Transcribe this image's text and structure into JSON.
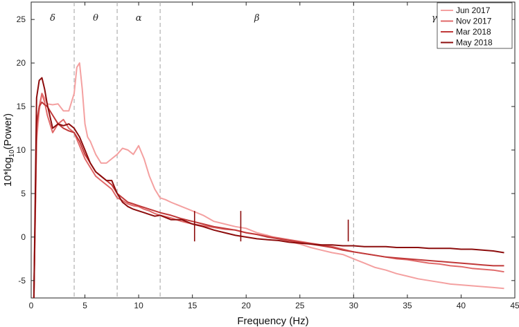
{
  "chart_data": {
    "type": "line",
    "xlabel": "Frequency (Hz)",
    "ylabel_main": "10*log",
    "ylabel_sub": "10",
    "ylabel_tail": "(Power)",
    "xlim": [
      0,
      45
    ],
    "ylim": [
      -7,
      27
    ],
    "xticks": [
      0,
      5,
      10,
      15,
      20,
      25,
      30,
      35,
      40,
      45
    ],
    "yticks": [
      -5,
      0,
      5,
      10,
      15,
      20,
      25
    ],
    "grid": false,
    "legend_position": "top-right",
    "bands": [
      {
        "label": "δ",
        "x": 2
      },
      {
        "label": "θ",
        "x": 6
      },
      {
        "label": "α",
        "x": 10
      },
      {
        "label": "β",
        "x": 21
      },
      {
        "label": "γ",
        "x": 37.5
      }
    ],
    "band_boundaries": [
      4,
      8,
      12,
      30
    ],
    "series": [
      {
        "name": "Jun 2017",
        "color": "#f4a0a0",
        "x": [
          0.25,
          0.5,
          0.75,
          1,
          1.25,
          1.5,
          2,
          2.5,
          3,
          3.5,
          4,
          4.25,
          4.5,
          4.75,
          5,
          5.25,
          5.5,
          6,
          6.5,
          7,
          7.5,
          8,
          8.5,
          9,
          9.5,
          10,
          10.5,
          11,
          11.5,
          12,
          12.5,
          13,
          14,
          15,
          16,
          17,
          18,
          19,
          20,
          21,
          22,
          23,
          24,
          25,
          26,
          27,
          28,
          29,
          30,
          31,
          32,
          33,
          34,
          35,
          36,
          37,
          38,
          39,
          40,
          41,
          42,
          43,
          44
        ],
        "y": [
          -7,
          11,
          14.5,
          16.5,
          16,
          15.3,
          15.2,
          15.3,
          14.5,
          14.5,
          16.5,
          19.5,
          20,
          17,
          13,
          11.5,
          11,
          9.5,
          8.5,
          8.5,
          9,
          9.5,
          10.2,
          10,
          9.5,
          10.5,
          9,
          7,
          5.5,
          4.5,
          4.3,
          4,
          3.5,
          3,
          2.5,
          1.8,
          1.5,
          1.2,
          1,
          0.5,
          0.2,
          -0.2,
          -0.5,
          -0.8,
          -1.2,
          -1.5,
          -1.8,
          -2,
          -2.5,
          -3,
          -3.5,
          -3.8,
          -4.2,
          -4.5,
          -4.8,
          -5,
          -5.2,
          -5.4,
          -5.5,
          -5.6,
          -5.7,
          -5.8,
          -5.9
        ]
      },
      {
        "name": "Nov 2017",
        "color": "#e06868",
        "x": [
          0.25,
          0.5,
          0.75,
          1,
          1.25,
          1.5,
          2,
          2.5,
          3,
          3.5,
          4,
          4.5,
          5,
          5.5,
          6,
          6.5,
          7,
          7.5,
          8,
          8.5,
          9,
          9.5,
          10,
          10.5,
          11,
          11.5,
          12,
          13,
          14,
          15,
          16,
          17,
          18,
          19,
          20,
          21,
          22,
          23,
          24,
          25,
          26,
          27,
          28,
          29,
          30,
          31,
          32,
          33,
          34,
          35,
          36,
          37,
          38,
          39,
          40,
          41,
          42,
          43,
          44
        ],
        "y": [
          -7,
          12,
          15,
          16.5,
          15.5,
          14,
          12,
          13,
          13.5,
          12.5,
          12,
          10.5,
          9,
          8,
          7,
          6.5,
          6,
          5.5,
          4.5,
          4.2,
          3.8,
          3.6,
          3.5,
          3.2,
          3,
          2.7,
          2.5,
          2.2,
          1.8,
          1.5,
          1.3,
          1.1,
          0.9,
          0.8,
          0.5,
          0.3,
          0.1,
          -0.1,
          -0.3,
          -0.5,
          -0.7,
          -0.9,
          -1.1,
          -1.4,
          -1.7,
          -1.9,
          -2.1,
          -2.3,
          -2.5,
          -2.6,
          -2.8,
          -3,
          -3.1,
          -3.3,
          -3.4,
          -3.6,
          -3.7,
          -3.8,
          -4
        ]
      },
      {
        "name": "Mar 2018",
        "color": "#c03838",
        "x": [
          0.25,
          0.5,
          0.75,
          1,
          1.25,
          1.5,
          2,
          2.5,
          3,
          3.5,
          4,
          4.5,
          5,
          5.5,
          6,
          6.5,
          7,
          7.5,
          8,
          8.5,
          9,
          9.5,
          10,
          10.5,
          11,
          11.5,
          12,
          13,
          14,
          15,
          16,
          17,
          18,
          19,
          20,
          21,
          22,
          23,
          24,
          25,
          26,
          27,
          28,
          29,
          30,
          31,
          32,
          33,
          34,
          35,
          36,
          37,
          38,
          39,
          40,
          41,
          42,
          43,
          44
        ],
        "y": [
          -7,
          13,
          15,
          15.5,
          15.2,
          15,
          14,
          13,
          12.5,
          12.2,
          12,
          11,
          9.5,
          8.5,
          7.5,
          7,
          6.5,
          6,
          5,
          4.5,
          4,
          3.8,
          3.6,
          3.4,
          3.2,
          3,
          2.8,
          2.5,
          2.1,
          1.8,
          1.5,
          1.2,
          1,
          0.8,
          0.5,
          0.3,
          0,
          -0.2,
          -0.4,
          -0.6,
          -0.8,
          -1,
          -1.2,
          -1.5,
          -1.7,
          -1.9,
          -2.1,
          -2.3,
          -2.4,
          -2.5,
          -2.6,
          -2.7,
          -2.8,
          -2.9,
          -3,
          -3.1,
          -3.2,
          -3.3,
          -3.3
        ]
      },
      {
        "name": "May 2018",
        "color": "#8c0c0c",
        "x": [
          0.25,
          0.5,
          0.75,
          1,
          1.25,
          1.5,
          2,
          2.5,
          3,
          3.5,
          4,
          4.5,
          5,
          5.5,
          6,
          6.5,
          7,
          7.5,
          8,
          8.5,
          9,
          9.5,
          10,
          10.5,
          11,
          11.5,
          12,
          13,
          14,
          15,
          16,
          17,
          18,
          19,
          20,
          21,
          22,
          23,
          24,
          25,
          26,
          27,
          28,
          29,
          30,
          31,
          32,
          33,
          34,
          35,
          36,
          37,
          38,
          39,
          40,
          41,
          42,
          43,
          44
        ],
        "y": [
          -7,
          16,
          18,
          18.3,
          17,
          15.2,
          12.5,
          13,
          12.8,
          13,
          12.5,
          11.5,
          10,
          8.5,
          7.5,
          7,
          6.5,
          6.5,
          5,
          4,
          3.5,
          3.2,
          3,
          2.8,
          2.6,
          2.4,
          2.5,
          2,
          2,
          1.5,
          1.2,
          0.8,
          0.5,
          0.2,
          0,
          -0.2,
          -0.3,
          -0.4,
          -0.6,
          -0.7,
          -0.8,
          -0.9,
          -0.9,
          -1,
          -1,
          -1.1,
          -1.1,
          -1.1,
          -1.2,
          -1.2,
          -1.2,
          -1.3,
          -1.3,
          -1.3,
          -1.4,
          -1.4,
          -1.5,
          -1.6,
          -1.8
        ]
      }
    ],
    "annotations": [
      {
        "series": 3,
        "x": 15.2,
        "y": 3
      },
      {
        "series": 3,
        "x": 19.5,
        "y": 3
      },
      {
        "series": 3,
        "x": 29.5,
        "y": 2
      }
    ]
  }
}
